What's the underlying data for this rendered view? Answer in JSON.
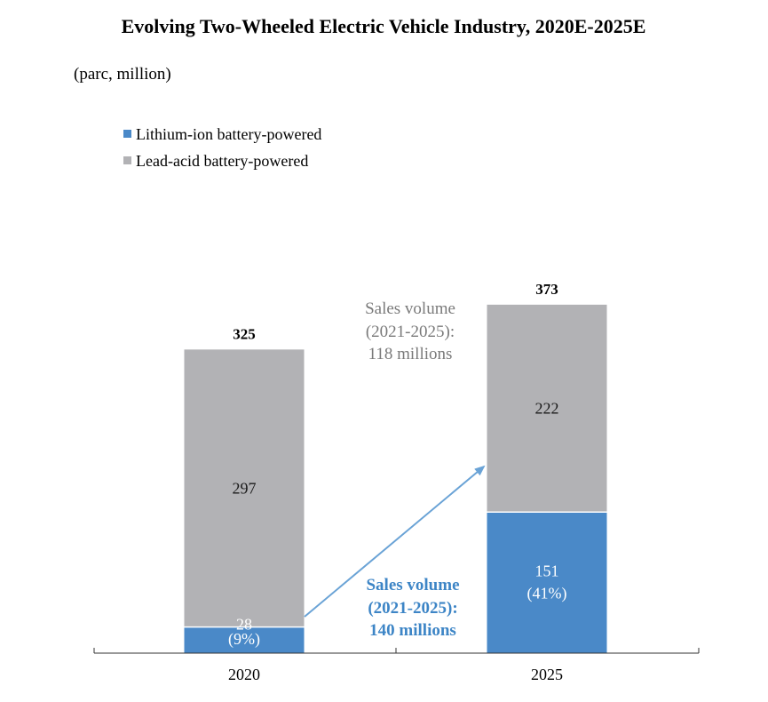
{
  "chart_data": {
    "type": "bar",
    "stacked": true,
    "title": "Evolving Two-Wheeled Electric Vehicle Industry, 2020E-2025E",
    "subtitle": "(parc, million)",
    "categories": [
      "2020",
      "2025"
    ],
    "series": [
      {
        "name": "Lithium-ion battery-powered",
        "color": "#4a89c8",
        "values": [
          28,
          151
        ],
        "labels": [
          "28",
          "151"
        ],
        "share_labels": [
          "(9%)",
          "(41%)"
        ]
      },
      {
        "name": "Lead-acid battery-powered",
        "color": "#b2b2b5",
        "values": [
          297,
          222
        ],
        "labels": [
          "297",
          "222"
        ]
      }
    ],
    "totals": [
      "325",
      "373"
    ],
    "ylim": [
      0,
      390
    ],
    "legend_position": "top-left",
    "annotations": {
      "lead_acid_sales": [
        "Sales volume",
        "(2021-2025):",
        "118 millions"
      ],
      "lithium_sales": [
        "Sales volume",
        "(2021-2025):",
        "140 millions"
      ]
    },
    "colors": {
      "arrow": "#6aa3d6",
      "axis": "#333333"
    }
  }
}
